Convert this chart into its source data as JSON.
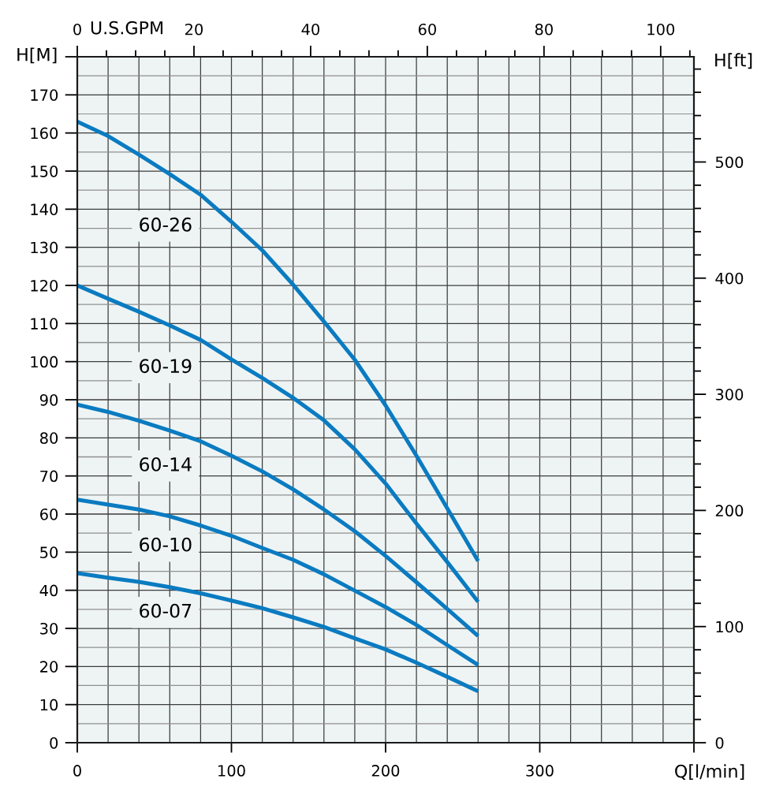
{
  "chart_data": {
    "type": "line",
    "xlabel": "Q[l/min]",
    "ylabel": "H[M]",
    "y2label": "H[ft]",
    "x2label": "U.S.GPM",
    "x": [
      0,
      20,
      40,
      60,
      80,
      100,
      120,
      140,
      160,
      180,
      200,
      220,
      240,
      260
    ],
    "series": [
      {
        "name": "60-26",
        "color": "#0a7bc1",
        "values": [
          163,
          159.2,
          154.3,
          149.2,
          143.8,
          136.7,
          129.2,
          120.2,
          110.5,
          100.5,
          88.5,
          75.3,
          61.5,
          47.7
        ]
      },
      {
        "name": "60-19",
        "color": "#0a7bc1",
        "values": [
          120,
          116.5,
          113.1,
          109.5,
          105.7,
          100.6,
          95.7,
          90.5,
          84.6,
          77.0,
          68.0,
          57.5,
          47.4,
          37.0
        ]
      },
      {
        "name": "60-14",
        "color": "#0a7bc1",
        "values": [
          88.7,
          86.8,
          84.5,
          81.9,
          79.1,
          75.3,
          71.2,
          66.5,
          61.2,
          55.5,
          49.0,
          42.1,
          35.1,
          28.0
        ]
      },
      {
        "name": "60-10",
        "color": "#0a7bc1",
        "values": [
          63.8,
          62.5,
          61.2,
          59.4,
          57.0,
          54.3,
          51.1,
          48.0,
          44.2,
          39.9,
          35.6,
          30.9,
          25.6,
          20.4
        ]
      },
      {
        "name": "60-07",
        "color": "#0a7bc1",
        "values": [
          44.5,
          43.3,
          42.2,
          40.8,
          39.2,
          37.3,
          35.3,
          32.9,
          30.4,
          27.4,
          24.5,
          21.0,
          17.3,
          13.5
        ]
      }
    ],
    "xlim": [
      0,
      400
    ],
    "xticks": [
      0,
      {
        "value": 20,
        "label": null
      },
      {
        "value": 40,
        "label": null
      },
      {
        "value": 60,
        "label": null
      },
      {
        "value": 80,
        "label": null
      },
      100,
      {
        "value": 120,
        "label": null
      },
      {
        "value": 140,
        "label": null
      },
      {
        "value": 160,
        "label": null
      },
      {
        "value": 180,
        "label": null
      },
      200,
      {
        "value": 220,
        "label": null
      },
      {
        "value": 240,
        "label": null
      },
      {
        "value": 260,
        "label": null
      },
      {
        "value": 280,
        "label": null
      },
      300,
      {
        "value": 320,
        "label": null
      },
      {
        "value": 340,
        "label": null
      },
      {
        "value": 360,
        "label": null
      },
      {
        "value": 380,
        "label": null
      },
      {
        "value": 400,
        "label": null
      }
    ],
    "ylim": [
      0,
      180
    ],
    "yticks": [
      0,
      {
        "value": 5,
        "label": null
      },
      10,
      {
        "value": 15,
        "label": null
      },
      20,
      {
        "value": 25,
        "label": null
      },
      30,
      {
        "value": 35,
        "label": null
      },
      40,
      {
        "value": 45,
        "label": null
      },
      50,
      {
        "value": 55,
        "label": null
      },
      60,
      {
        "value": 65,
        "label": null
      },
      70,
      {
        "value": 75,
        "label": null
      },
      80,
      {
        "value": 85,
        "label": null
      },
      90,
      {
        "value": 95,
        "label": null
      },
      100,
      {
        "value": 105,
        "label": null
      },
      110,
      {
        "value": 115,
        "label": null
      },
      120,
      {
        "value": 125,
        "label": null
      },
      130,
      {
        "value": 135,
        "label": null
      },
      140,
      {
        "value": 145,
        "label": null
      },
      150,
      {
        "value": 155,
        "label": null
      },
      160,
      {
        "value": 165,
        "label": null
      },
      170,
      {
        "value": 175,
        "label": null
      },
      {
        "value": 180,
        "label": null
      }
    ],
    "y2lim": [
      0,
      590.6
    ],
    "y2ticks": [
      0,
      {
        "value": 20,
        "label": null
      },
      {
        "value": 40,
        "label": null
      },
      {
        "value": 60,
        "label": null
      },
      {
        "value": 80,
        "label": null
      },
      100,
      {
        "value": 120,
        "label": null
      },
      {
        "value": 140,
        "label": null
      },
      {
        "value": 160,
        "label": null
      },
      {
        "value": 180,
        "label": null
      },
      200,
      {
        "value": 220,
        "label": null
      },
      {
        "value": 240,
        "label": null
      },
      {
        "value": 260,
        "label": null
      },
      {
        "value": 280,
        "label": null
      },
      300,
      {
        "value": 320,
        "label": null
      },
      {
        "value": 340,
        "label": null
      },
      {
        "value": 360,
        "label": null
      },
      {
        "value": 380,
        "label": null
      },
      400,
      {
        "value": 420,
        "label": null
      },
      {
        "value": 440,
        "label": null
      },
      {
        "value": 460,
        "label": null
      },
      {
        "value": 480,
        "label": null
      },
      500,
      {
        "value": 520,
        "label": null
      },
      {
        "value": 540,
        "label": null
      },
      {
        "value": 560,
        "label": null
      },
      {
        "value": 580,
        "label": null
      }
    ],
    "x2lim": [
      0,
      105.7
    ],
    "x2ticks": [
      0,
      {
        "value": 5,
        "label": null
      },
      {
        "value": 10,
        "label": null
      },
      {
        "value": 15,
        "label": null
      },
      20,
      {
        "value": 25,
        "label": null
      },
      {
        "value": 30,
        "label": null
      },
      {
        "value": 35,
        "label": null
      },
      40,
      {
        "value": 45,
        "label": null
      },
      {
        "value": 50,
        "label": null
      },
      {
        "value": 55,
        "label": null
      },
      60,
      {
        "value": 65,
        "label": null
      },
      {
        "value": 70,
        "label": null
      },
      {
        "value": 75,
        "label": null
      },
      80,
      {
        "value": 85,
        "label": null
      },
      {
        "value": 90,
        "label": null
      },
      {
        "value": 95,
        "label": null
      },
      100,
      {
        "value": 105,
        "label": null
      }
    ],
    "grid": true
  }
}
